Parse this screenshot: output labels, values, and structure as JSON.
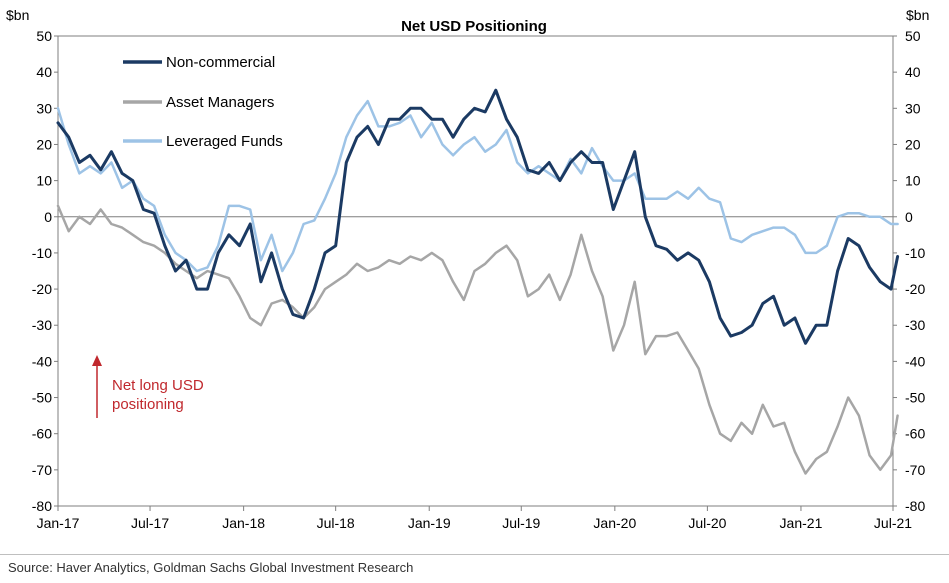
{
  "source": "Source: Haver Analytics, Goldman Sachs Global Investment Research",
  "chart_data": {
    "type": "line",
    "title": "Net USD Positioning",
    "ylabel_left": "$bn",
    "ylabel_right": "$bn",
    "ylim": [
      -80,
      50
    ],
    "yticks": [
      50,
      40,
      30,
      20,
      10,
      0,
      -10,
      -20,
      -30,
      -40,
      -50,
      -60,
      -70,
      -80
    ],
    "x_start": "2017-01",
    "x_end": "2021-07",
    "xticks": [
      "Jan-17",
      "Jul-17",
      "Jan-18",
      "Jul-18",
      "Jan-19",
      "Jul-19",
      "Jan-20",
      "Jul-20",
      "Jan-21",
      "Jul-21"
    ],
    "legend_position": "top-left",
    "annotation": {
      "lines": [
        "Net long USD",
        "positioning"
      ],
      "color": "#c0282d"
    },
    "zero_line": true,
    "series": [
      {
        "name": "Non-commercial",
        "color": "#1b3a63",
        "points": [
          [
            "2017-01-01",
            26
          ],
          [
            "2017-01-22",
            22
          ],
          [
            "2017-02-12",
            15
          ],
          [
            "2017-03-05",
            17
          ],
          [
            "2017-03-26",
            13
          ],
          [
            "2017-04-16",
            18
          ],
          [
            "2017-05-07",
            12
          ],
          [
            "2017-05-28",
            10
          ],
          [
            "2017-06-18",
            2
          ],
          [
            "2017-07-09",
            1
          ],
          [
            "2017-07-30",
            -8
          ],
          [
            "2017-08-20",
            -15
          ],
          [
            "2017-09-10",
            -12
          ],
          [
            "2017-10-01",
            -20
          ],
          [
            "2017-10-22",
            -20
          ],
          [
            "2017-11-12",
            -10
          ],
          [
            "2017-12-03",
            -5
          ],
          [
            "2017-12-24",
            -8
          ],
          [
            "2018-01-14",
            -2
          ],
          [
            "2018-02-04",
            -18
          ],
          [
            "2018-02-25",
            -10
          ],
          [
            "2018-03-18",
            -20
          ],
          [
            "2018-04-08",
            -27
          ],
          [
            "2018-04-29",
            -28
          ],
          [
            "2018-05-20",
            -20
          ],
          [
            "2018-06-10",
            -10
          ],
          [
            "2018-07-01",
            -8
          ],
          [
            "2018-07-22",
            15
          ],
          [
            "2018-08-12",
            22
          ],
          [
            "2018-09-02",
            25
          ],
          [
            "2018-09-23",
            20
          ],
          [
            "2018-10-14",
            27
          ],
          [
            "2018-11-04",
            27
          ],
          [
            "2018-11-25",
            30
          ],
          [
            "2018-12-16",
            30
          ],
          [
            "2019-01-06",
            27
          ],
          [
            "2019-01-27",
            27
          ],
          [
            "2019-02-17",
            22
          ],
          [
            "2019-03-10",
            27
          ],
          [
            "2019-03-31",
            30
          ],
          [
            "2019-04-21",
            29
          ],
          [
            "2019-05-12",
            35
          ],
          [
            "2019-06-02",
            27
          ],
          [
            "2019-06-23",
            22
          ],
          [
            "2019-07-14",
            13
          ],
          [
            "2019-08-04",
            12
          ],
          [
            "2019-08-25",
            15
          ],
          [
            "2019-09-15",
            10
          ],
          [
            "2019-10-06",
            15
          ],
          [
            "2019-10-27",
            18
          ],
          [
            "2019-11-17",
            15
          ],
          [
            "2019-12-08",
            15
          ],
          [
            "2019-12-29",
            2
          ],
          [
            "2020-01-19",
            10
          ],
          [
            "2020-02-09",
            18
          ],
          [
            "2020-03-01",
            0
          ],
          [
            "2020-03-22",
            -8
          ],
          [
            "2020-04-12",
            -9
          ],
          [
            "2020-05-03",
            -12
          ],
          [
            "2020-05-24",
            -10
          ],
          [
            "2020-06-14",
            -12
          ],
          [
            "2020-07-05",
            -18
          ],
          [
            "2020-07-26",
            -28
          ],
          [
            "2020-08-16",
            -33
          ],
          [
            "2020-09-06",
            -32
          ],
          [
            "2020-09-27",
            -30
          ],
          [
            "2020-10-18",
            -24
          ],
          [
            "2020-11-08",
            -22
          ],
          [
            "2020-11-29",
            -30
          ],
          [
            "2020-12-20",
            -28
          ],
          [
            "2021-01-10",
            -35
          ],
          [
            "2021-01-31",
            -30
          ],
          [
            "2021-02-21",
            -30
          ],
          [
            "2021-03-14",
            -15
          ],
          [
            "2021-04-04",
            -6
          ],
          [
            "2021-04-25",
            -8
          ],
          [
            "2021-05-16",
            -14
          ],
          [
            "2021-06-06",
            -18
          ],
          [
            "2021-06-27",
            -20
          ],
          [
            "2021-07-10",
            -11
          ]
        ]
      },
      {
        "name": "Asset Managers",
        "color": "#a6a6a6",
        "points": [
          [
            "2017-01-01",
            3
          ],
          [
            "2017-01-22",
            -4
          ],
          [
            "2017-02-12",
            0
          ],
          [
            "2017-03-05",
            -2
          ],
          [
            "2017-03-26",
            2
          ],
          [
            "2017-04-16",
            -2
          ],
          [
            "2017-05-07",
            -3
          ],
          [
            "2017-05-28",
            -5
          ],
          [
            "2017-06-18",
            -7
          ],
          [
            "2017-07-09",
            -8
          ],
          [
            "2017-07-30",
            -10
          ],
          [
            "2017-08-20",
            -13
          ],
          [
            "2017-09-10",
            -15
          ],
          [
            "2017-10-01",
            -17
          ],
          [
            "2017-10-22",
            -15
          ],
          [
            "2017-11-12",
            -16
          ],
          [
            "2017-12-03",
            -17
          ],
          [
            "2017-12-24",
            -22
          ],
          [
            "2018-01-14",
            -28
          ],
          [
            "2018-02-04",
            -30
          ],
          [
            "2018-02-25",
            -24
          ],
          [
            "2018-03-18",
            -23
          ],
          [
            "2018-04-08",
            -25
          ],
          [
            "2018-04-29",
            -28
          ],
          [
            "2018-05-20",
            -25
          ],
          [
            "2018-06-10",
            -20
          ],
          [
            "2018-07-01",
            -18
          ],
          [
            "2018-07-22",
            -16
          ],
          [
            "2018-08-12",
            -13
          ],
          [
            "2018-09-02",
            -15
          ],
          [
            "2018-09-23",
            -14
          ],
          [
            "2018-10-14",
            -12
          ],
          [
            "2018-11-04",
            -13
          ],
          [
            "2018-11-25",
            -11
          ],
          [
            "2018-12-16",
            -12
          ],
          [
            "2019-01-06",
            -10
          ],
          [
            "2019-01-27",
            -12
          ],
          [
            "2019-02-17",
            -18
          ],
          [
            "2019-03-10",
            -23
          ],
          [
            "2019-03-31",
            -15
          ],
          [
            "2019-04-21",
            -13
          ],
          [
            "2019-05-12",
            -10
          ],
          [
            "2019-06-02",
            -8
          ],
          [
            "2019-06-23",
            -12
          ],
          [
            "2019-07-14",
            -22
          ],
          [
            "2019-08-04",
            -20
          ],
          [
            "2019-08-25",
            -16
          ],
          [
            "2019-09-15",
            -23
          ],
          [
            "2019-10-06",
            -16
          ],
          [
            "2019-10-27",
            -5
          ],
          [
            "2019-11-17",
            -15
          ],
          [
            "2019-12-08",
            -22
          ],
          [
            "2019-12-29",
            -37
          ],
          [
            "2020-01-19",
            -30
          ],
          [
            "2020-02-09",
            -18
          ],
          [
            "2020-03-01",
            -38
          ],
          [
            "2020-03-22",
            -33
          ],
          [
            "2020-04-12",
            -33
          ],
          [
            "2020-05-03",
            -32
          ],
          [
            "2020-05-24",
            -37
          ],
          [
            "2020-06-14",
            -42
          ],
          [
            "2020-07-05",
            -52
          ],
          [
            "2020-07-26",
            -60
          ],
          [
            "2020-08-16",
            -62
          ],
          [
            "2020-09-06",
            -57
          ],
          [
            "2020-09-27",
            -60
          ],
          [
            "2020-10-18",
            -52
          ],
          [
            "2020-11-08",
            -58
          ],
          [
            "2020-11-29",
            -57
          ],
          [
            "2020-12-20",
            -65
          ],
          [
            "2021-01-10",
            -71
          ],
          [
            "2021-01-31",
            -67
          ],
          [
            "2021-02-21",
            -65
          ],
          [
            "2021-03-14",
            -58
          ],
          [
            "2021-04-04",
            -50
          ],
          [
            "2021-04-25",
            -55
          ],
          [
            "2021-05-16",
            -66
          ],
          [
            "2021-06-06",
            -70
          ],
          [
            "2021-06-27",
            -66
          ],
          [
            "2021-07-10",
            -55
          ]
        ]
      },
      {
        "name": "Leveraged Funds",
        "color": "#9dc3e6",
        "points": [
          [
            "2017-01-01",
            30
          ],
          [
            "2017-01-22",
            20
          ],
          [
            "2017-02-12",
            12
          ],
          [
            "2017-03-05",
            14
          ],
          [
            "2017-03-26",
            12
          ],
          [
            "2017-04-16",
            15
          ],
          [
            "2017-05-07",
            8
          ],
          [
            "2017-05-28",
            10
          ],
          [
            "2017-06-18",
            5
          ],
          [
            "2017-07-09",
            3
          ],
          [
            "2017-07-30",
            -5
          ],
          [
            "2017-08-20",
            -10
          ],
          [
            "2017-09-10",
            -12
          ],
          [
            "2017-10-01",
            -15
          ],
          [
            "2017-10-22",
            -14
          ],
          [
            "2017-11-12",
            -8
          ],
          [
            "2017-12-03",
            3
          ],
          [
            "2017-12-24",
            3
          ],
          [
            "2018-01-14",
            2
          ],
          [
            "2018-02-04",
            -12
          ],
          [
            "2018-02-25",
            -5
          ],
          [
            "2018-03-18",
            -15
          ],
          [
            "2018-04-08",
            -10
          ],
          [
            "2018-04-29",
            -2
          ],
          [
            "2018-05-20",
            -1
          ],
          [
            "2018-06-10",
            5
          ],
          [
            "2018-07-01",
            12
          ],
          [
            "2018-07-22",
            22
          ],
          [
            "2018-08-12",
            28
          ],
          [
            "2018-09-02",
            32
          ],
          [
            "2018-09-23",
            25
          ],
          [
            "2018-10-14",
            25
          ],
          [
            "2018-11-04",
            26
          ],
          [
            "2018-11-25",
            28
          ],
          [
            "2018-12-16",
            22
          ],
          [
            "2019-01-06",
            26
          ],
          [
            "2019-01-27",
            20
          ],
          [
            "2019-02-17",
            17
          ],
          [
            "2019-03-10",
            20
          ],
          [
            "2019-03-31",
            22
          ],
          [
            "2019-04-21",
            18
          ],
          [
            "2019-05-12",
            20
          ],
          [
            "2019-06-02",
            24
          ],
          [
            "2019-06-23",
            15
          ],
          [
            "2019-07-14",
            12
          ],
          [
            "2019-08-04",
            14
          ],
          [
            "2019-08-25",
            12
          ],
          [
            "2019-09-15",
            10
          ],
          [
            "2019-10-06",
            16
          ],
          [
            "2019-10-27",
            12
          ],
          [
            "2019-11-17",
            19
          ],
          [
            "2019-12-08",
            14
          ],
          [
            "2019-12-29",
            10
          ],
          [
            "2020-01-19",
            10
          ],
          [
            "2020-02-09",
            12
          ],
          [
            "2020-03-01",
            5
          ],
          [
            "2020-03-22",
            5
          ],
          [
            "2020-04-12",
            5
          ],
          [
            "2020-05-03",
            7
          ],
          [
            "2020-05-24",
            5
          ],
          [
            "2020-06-14",
            8
          ],
          [
            "2020-07-05",
            5
          ],
          [
            "2020-07-26",
            4
          ],
          [
            "2020-08-16",
            -6
          ],
          [
            "2020-09-06",
            -7
          ],
          [
            "2020-09-27",
            -5
          ],
          [
            "2020-10-18",
            -4
          ],
          [
            "2020-11-08",
            -3
          ],
          [
            "2020-11-29",
            -3
          ],
          [
            "2020-12-20",
            -5
          ],
          [
            "2021-01-10",
            -10
          ],
          [
            "2021-01-31",
            -10
          ],
          [
            "2021-02-21",
            -8
          ],
          [
            "2021-03-14",
            0
          ],
          [
            "2021-04-04",
            1
          ],
          [
            "2021-04-25",
            1
          ],
          [
            "2021-05-16",
            0
          ],
          [
            "2021-06-06",
            0
          ],
          [
            "2021-06-27",
            -2
          ],
          [
            "2021-07-10",
            -2
          ]
        ]
      }
    ]
  }
}
